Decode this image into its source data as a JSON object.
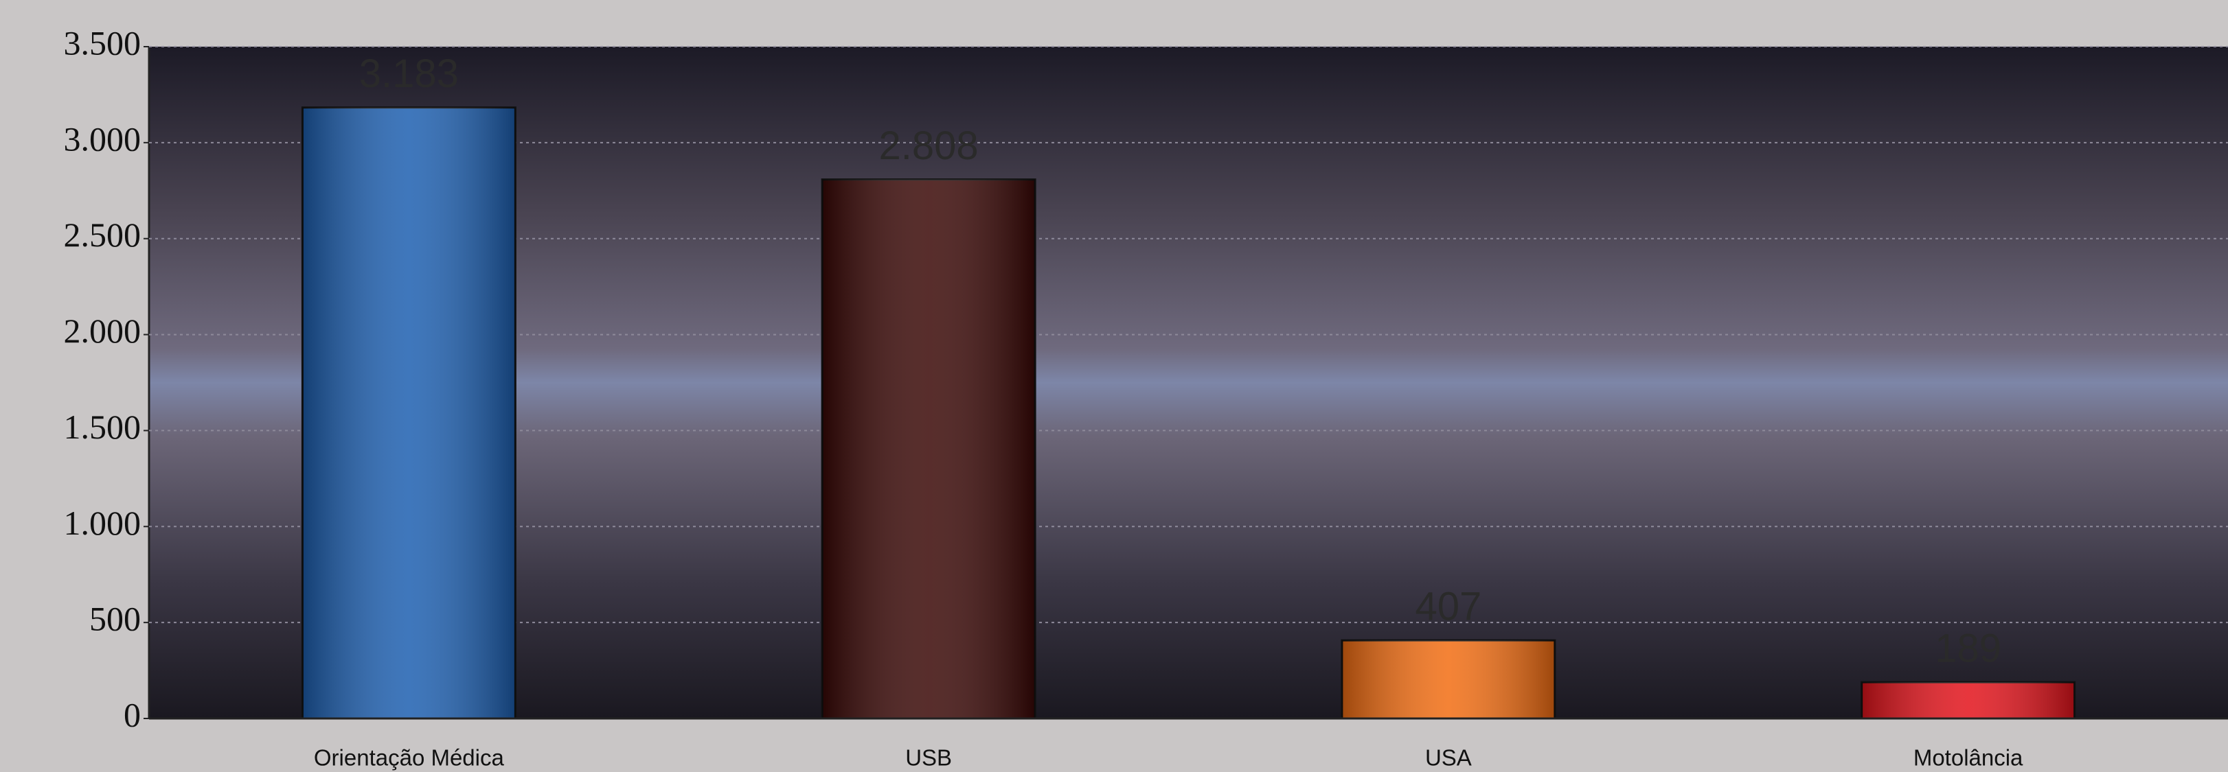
{
  "chart_data": {
    "type": "bar",
    "categories": [
      "Orientação Médica",
      "USB",
      "USA",
      "Motolância"
    ],
    "values": [
      3183,
      2808,
      407,
      189
    ],
    "value_labels": [
      "3.183",
      "2.808",
      "407",
      "189"
    ],
    "colors": [
      "#1d5fb0",
      "#3a0806",
      "#f26d12",
      "#e3131b"
    ],
    "ylim": [
      0,
      3500
    ],
    "yticks": [
      0,
      500,
      {
        "value": 1000,
        "label": "1.000"
      },
      {
        "value": 1500,
        "label": "1.500"
      },
      {
        "value": 2000,
        "label": "2.000"
      },
      {
        "value": 2500,
        "label": "2.500"
      },
      {
        "value": 3000,
        "label": "3.000"
      },
      {
        "value": 3500,
        "label": "3.500"
      }
    ],
    "grid": true
  }
}
